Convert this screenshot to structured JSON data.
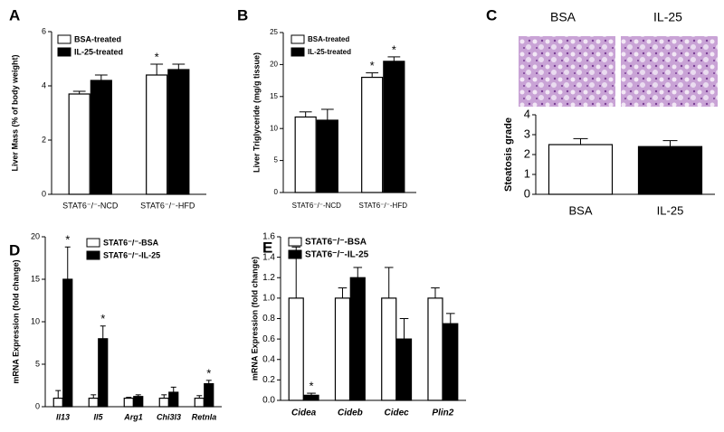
{
  "chart_data": [
    {
      "type": "bar",
      "label": "A",
      "ylabel": "Liver Mass (% of body weight)",
      "categories": [
        "STAT6⁻/⁻-NCD",
        "STAT6⁻/⁻-HFD"
      ],
      "series": [
        {
          "name": "BSA-treated",
          "color": "#ffffff",
          "values": [
            3.7,
            4.4
          ],
          "errors": [
            0.1,
            0.4
          ],
          "annotations": [
            null,
            "*"
          ]
        },
        {
          "name": "IL-25-treated",
          "color": "#000000",
          "values": [
            4.2,
            4.6
          ],
          "errors": [
            0.2,
            0.2
          ],
          "annotations": [
            null,
            null
          ]
        }
      ],
      "ylim": [
        0,
        6
      ],
      "yticks": [
        0,
        2,
        4,
        6
      ]
    },
    {
      "type": "bar",
      "label": "B",
      "ylabel": "Liver Triglyceride (mg/g tissue)",
      "categories": [
        "STAT6⁻/⁻-NCD",
        "STAT6⁻/⁻-HFD"
      ],
      "series": [
        {
          "name": "BSA-treated",
          "color": "#ffffff",
          "values": [
            11.8,
            18.0
          ],
          "errors": [
            0.8,
            0.7
          ],
          "annotations": [
            null,
            "*"
          ]
        },
        {
          "name": "IL-25-treated",
          "color": "#000000",
          "values": [
            11.3,
            20.5
          ],
          "errors": [
            1.7,
            0.7
          ],
          "annotations": [
            null,
            "*"
          ]
        }
      ],
      "ylim": [
        0,
        25
      ],
      "yticks": [
        0,
        5,
        10,
        15,
        20,
        25
      ]
    },
    {
      "type": "bar",
      "label": "C",
      "ylabel": "Steatosis grade",
      "image_titles": [
        "BSA",
        "IL-25"
      ],
      "categories": [
        "BSA",
        "IL-25"
      ],
      "series": [
        {
          "colors": [
            "#ffffff",
            "#000000"
          ],
          "values": [
            2.5,
            2.4
          ],
          "errors": [
            0.3,
            0.3
          ],
          "annotations": [
            null,
            null
          ]
        }
      ],
      "ylim": [
        0,
        4
      ],
      "yticks": [
        0,
        1,
        2,
        3,
        4
      ]
    },
    {
      "type": "bar",
      "label": "D",
      "ylabel": "mRNA Expression (fold change)",
      "categories": [
        "Il13",
        "Il5",
        "Arg1",
        "Chi3l3",
        "Retnla"
      ],
      "series": [
        {
          "name": "STAT6⁻/⁻-BSA",
          "color": "#ffffff",
          "values": [
            1.0,
            1.0,
            1.0,
            1.0,
            1.0
          ],
          "errors": [
            0.9,
            0.4,
            0.1,
            0.4,
            0.3
          ],
          "annotations": [
            null,
            null,
            null,
            null,
            null
          ]
        },
        {
          "name": "STAT6⁻/⁻-IL-25",
          "color": "#000000",
          "values": [
            15,
            8,
            1.2,
            1.7,
            2.7
          ],
          "errors": [
            3.8,
            1.5,
            0.2,
            0.6,
            0.4
          ],
          "annotations": [
            "*",
            "*",
            null,
            null,
            "*"
          ]
        }
      ],
      "ylim": [
        0,
        20
      ],
      "yticks": [
        0,
        5,
        10,
        15,
        20
      ]
    },
    {
      "type": "bar",
      "label": "E",
      "ylabel": "mRNA Expression (fold change)",
      "categories": [
        "Cidea",
        "Cideb",
        "Cidec",
        "Plin2"
      ],
      "series": [
        {
          "name": "STAT6⁻/⁻-BSA",
          "color": "#ffffff",
          "values": [
            1.0,
            1.0,
            1.0,
            1.0
          ],
          "errors": [
            0.5,
            0.1,
            0.3,
            0.1
          ],
          "annotations": [
            null,
            null,
            null,
            null
          ]
        },
        {
          "name": "STAT6⁻/⁻-IL-25",
          "color": "#000000",
          "values": [
            0.05,
            1.2,
            0.6,
            0.75
          ],
          "errors": [
            0.02,
            0.1,
            0.2,
            0.1
          ],
          "annotations": [
            "*",
            null,
            null,
            null
          ]
        }
      ],
      "ylim": [
        0,
        1.6
      ],
      "yticks": [
        {
          "value": 0,
          "label": "0.0"
        },
        0.2,
        0.4,
        0.6,
        0.8,
        {
          "value": 1,
          "label": "1.0"
        },
        1.2,
        1.4,
        1.6
      ]
    }
  ]
}
